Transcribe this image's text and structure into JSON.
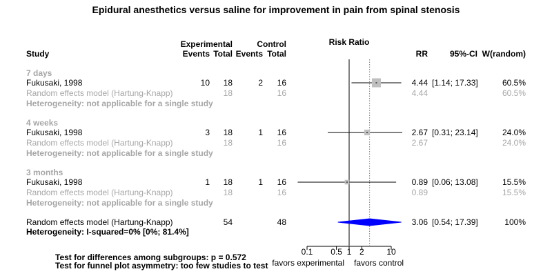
{
  "chart_data": {
    "type": "forest",
    "title": "Epidural anesthetics versus saline for improvement in pain from spinal stenosis",
    "headers": {
      "study": "Study",
      "experimental_group": "Experimental",
      "control_group": "Control",
      "events": "Events",
      "total": "Total",
      "effect": "Risk Ratio",
      "rr": "RR",
      "ci": "95%-CI",
      "weight": "W(random)"
    },
    "x_axis": {
      "scale": "log",
      "ticks": [
        0.1,
        0.5,
        1,
        2,
        10
      ],
      "tick_labels": [
        "0.1",
        "0.5",
        "1",
        "2",
        "10"
      ],
      "left_label": "favors experimental",
      "right_label": "favors control",
      "null_value": 1
    },
    "subgroups": [
      {
        "label": "7 days",
        "study": {
          "name": "Fukusaki, 1998",
          "exp_events": "10",
          "exp_total": "18",
          "ctrl_events": "2",
          "ctrl_total": "16",
          "rr": 4.44,
          "ci_low": 1.14,
          "ci_high": 17.33,
          "rr_text": "4.44",
          "ci_text": "[1.14; 17.33]",
          "weight": 0.605,
          "weight_text": "60.5%"
        },
        "pooled": {
          "name": "Random effects model  (Hartung-Knapp)",
          "exp_total": "18",
          "ctrl_total": "16",
          "rr_text": "4.44",
          "weight_text": "60.5%"
        },
        "heterogeneity": "Heterogeneity: not applicable for a single study"
      },
      {
        "label": "4 weeks",
        "study": {
          "name": "Fukusaki, 1998",
          "exp_events": "3",
          "exp_total": "18",
          "ctrl_events": "1",
          "ctrl_total": "16",
          "rr": 2.67,
          "ci_low": 0.31,
          "ci_high": 23.14,
          "rr_text": "2.67",
          "ci_text": "[0.31; 23.14]",
          "weight": 0.24,
          "weight_text": "24.0%"
        },
        "pooled": {
          "name": "Random effects model  (Hartung-Knapp)",
          "exp_total": "18",
          "ctrl_total": "16",
          "rr_text": "2.67",
          "weight_text": "24.0%"
        },
        "heterogeneity": "Heterogeneity: not applicable for a single study"
      },
      {
        "label": "3 months",
        "study": {
          "name": "Fukusaki, 1998",
          "exp_events": "1",
          "exp_total": "18",
          "ctrl_events": "1",
          "ctrl_total": "16",
          "rr": 0.89,
          "ci_low": 0.06,
          "ci_high": 13.08,
          "rr_text": "0.89",
          "ci_text": "[0.06; 13.08]",
          "weight": 0.155,
          "weight_text": "15.5%"
        },
        "pooled": {
          "name": "Random effects model  (Hartung-Knapp)",
          "exp_total": "18",
          "ctrl_total": "16",
          "rr_text": "0.89",
          "weight_text": "15.5%"
        },
        "heterogeneity": "Heterogeneity: not applicable for a single study"
      }
    ],
    "overall": {
      "name": "Random effects model  (Hartung-Knapp)",
      "exp_total": "54",
      "ctrl_total": "48",
      "rr": 3.06,
      "ci_low": 0.54,
      "ci_high": 17.39,
      "rr_text": "3.06",
      "ci_text": "[0.54; 17.39]",
      "weight_text": "100%",
      "heterogeneity": "Heterogeneity: I-squared=0% [0%; 81.4%]"
    },
    "tests": [
      "Test for differences among subgroups: p = 0.572",
      "Test for funnel plot asymmetry: too few studies to test"
    ],
    "colors": {
      "diamond": "#0000ff",
      "square": "#bfbfbf",
      "grey_text": "#a6a6a6",
      "dotted_line": "#808080"
    }
  }
}
